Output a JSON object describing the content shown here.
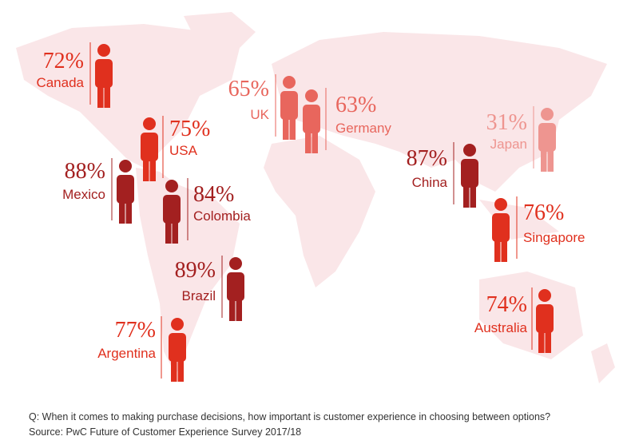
{
  "countries": [
    {
      "name": "Canada",
      "value": "72%",
      "color": "#e0301e"
    },
    {
      "name": "USA",
      "value": "75%",
      "color": "#e0301e"
    },
    {
      "name": "Mexico",
      "value": "88%",
      "color": "#a32020"
    },
    {
      "name": "Colombia",
      "value": "84%",
      "color": "#a32020"
    },
    {
      "name": "Brazil",
      "value": "89%",
      "color": "#a32020"
    },
    {
      "name": "Argentina",
      "value": "77%",
      "color": "#e0301e"
    },
    {
      "name": "UK",
      "value": "65%",
      "color": "#e8665d"
    },
    {
      "name": "Germany",
      "value": "63%",
      "color": "#e8665d"
    },
    {
      "name": "Japan",
      "value": "31%",
      "color": "#ee9590"
    },
    {
      "name": "China",
      "value": "87%",
      "color": "#a32020"
    },
    {
      "name": "Singapore",
      "value": "76%",
      "color": "#e0301e"
    },
    {
      "name": "Australia",
      "value": "74%",
      "color": "#e0301e"
    }
  ],
  "footer": {
    "question": "Q: When it comes to making purchase decisions, how important is customer experience in choosing between options?",
    "source": "Source: PwC Future of Customer Experience Survey 2017/18"
  }
}
